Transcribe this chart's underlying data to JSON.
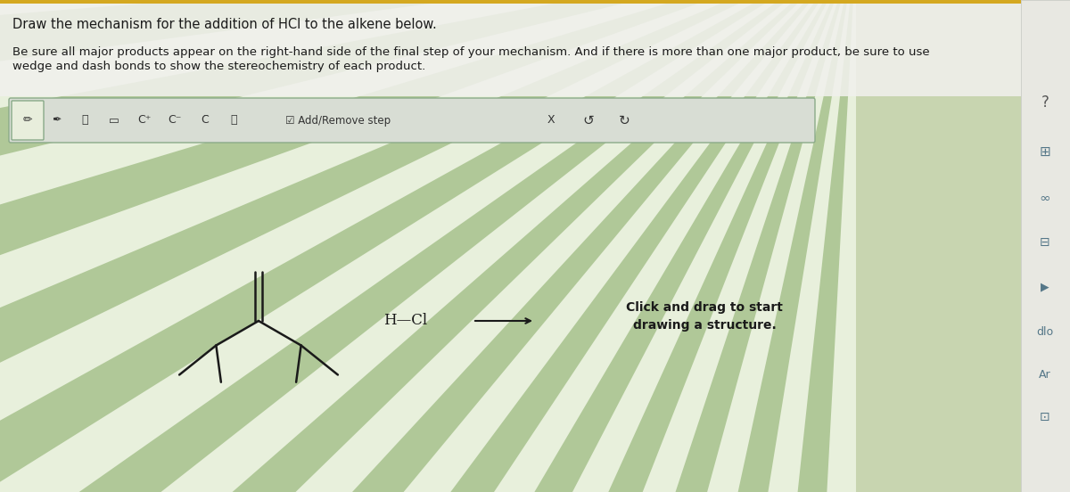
{
  "title_line1": "Draw the mechanism for the addition of HCl to the alkene below.",
  "title_line2": "Be sure all major products appear on the right-hand side of the final step of your mechanism. And if there is more than one major product, be sure to use",
  "title_line3": "wedge and dash bonds to show the stereochemistry of each product.",
  "hcl_text": "H—Cl",
  "click_drag_text": "Click and drag to start\ndrawing a structure.",
  "bg_base": "#c8d5b0",
  "swirl_light": "#e8f0dc",
  "swirl_dark": "#b0c898",
  "top_panel_color": "#f0f0ec",
  "toolbar_bg": "#d8ddd4",
  "toolbar_border": "#8aaa88",
  "text_color": "#1a1a1a",
  "sidebar_bg": "#e8e8e2",
  "top_stripe_color": "#d4a820",
  "font_size_title": 10.5,
  "font_size_body": 9.5,
  "font_size_chem": 12
}
